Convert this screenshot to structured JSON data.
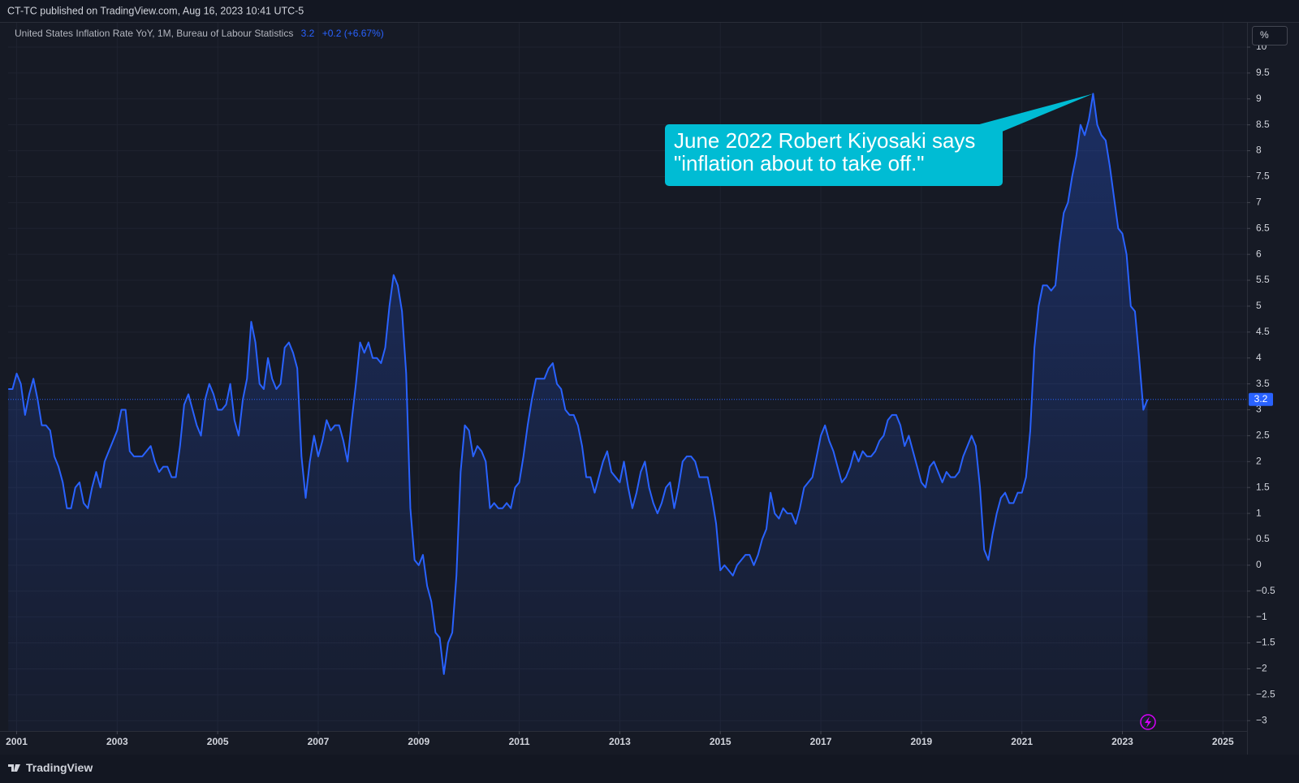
{
  "header": "CT-TC published on TradingView.com, Aug 16, 2023 10:41 UTC-5",
  "footer": "TradingView",
  "unit_button": "%",
  "legend_change": "+0.2 (+6.67%)",
  "chart_data": {
    "type": "area",
    "title": "United States Inflation Rate YoY, 1M, Bureau of Labour Statistics",
    "grid": true,
    "xlim": [
      2000.83,
      2025.48
    ],
    "xticks": [
      2001,
      2003,
      2005,
      2007,
      2009,
      2011,
      2013,
      2015,
      2017,
      2019,
      2021,
      2023,
      2025
    ],
    "ylim": [
      -3.2,
      10
    ],
    "yticks": [
      {
        "value": -3,
        "label": "−3"
      },
      {
        "value": -2.5,
        "label": "−2.5"
      },
      {
        "value": -2,
        "label": "−2"
      },
      {
        "value": -1.5,
        "label": "−1.5"
      },
      {
        "value": -1,
        "label": "−1"
      },
      {
        "value": -0.5,
        "label": "−0.5"
      },
      0,
      0.5,
      1,
      1.5,
      2,
      2.5,
      3,
      3.5,
      4,
      4.5,
      5,
      5.5,
      6,
      6.5,
      7,
      7.5,
      8,
      8.5,
      9,
      9.5,
      10
    ],
    "annotation": {
      "lines": [
        "June 2022 Robert Kiyosaki says",
        "\"inflation about to take off.\""
      ],
      "color": "#00bcd4"
    },
    "series": [
      {
        "name": "United States Inflation Rate YoY",
        "color": "#2962ff",
        "x": [
          2000.833,
          2000.917,
          2001,
          2001.083,
          2001.167,
          2001.25,
          2001.333,
          2001.417,
          2001.5,
          2001.583,
          2001.667,
          2001.75,
          2001.833,
          2001.917,
          2002,
          2002.083,
          2002.167,
          2002.25,
          2002.333,
          2002.417,
          2002.5,
          2002.583,
          2002.667,
          2002.75,
          2002.833,
          2002.917,
          2003,
          2003.083,
          2003.167,
          2003.25,
          2003.333,
          2003.417,
          2003.5,
          2003.583,
          2003.667,
          2003.75,
          2003.833,
          2003.917,
          2004,
          2004.083,
          2004.167,
          2004.25,
          2004.333,
          2004.417,
          2004.5,
          2004.583,
          2004.667,
          2004.75,
          2004.833,
          2004.917,
          2005,
          2005.083,
          2005.167,
          2005.25,
          2005.333,
          2005.417,
          2005.5,
          2005.583,
          2005.667,
          2005.75,
          2005.833,
          2005.917,
          2006,
          2006.083,
          2006.167,
          2006.25,
          2006.333,
          2006.417,
          2006.5,
          2006.583,
          2006.667,
          2006.75,
          2006.833,
          2006.917,
          2007,
          2007.083,
          2007.167,
          2007.25,
          2007.333,
          2007.417,
          2007.5,
          2007.583,
          2007.667,
          2007.75,
          2007.833,
          2007.917,
          2008,
          2008.083,
          2008.167,
          2008.25,
          2008.333,
          2008.417,
          2008.5,
          2008.583,
          2008.667,
          2008.75,
          2008.833,
          2008.917,
          2009,
          2009.083,
          2009.167,
          2009.25,
          2009.333,
          2009.417,
          2009.5,
          2009.583,
          2009.667,
          2009.75,
          2009.833,
          2009.917,
          2010,
          2010.083,
          2010.167,
          2010.25,
          2010.333,
          2010.417,
          2010.5,
          2010.583,
          2010.667,
          2010.75,
          2010.833,
          2010.917,
          2011,
          2011.083,
          2011.167,
          2011.25,
          2011.333,
          2011.417,
          2011.5,
          2011.583,
          2011.667,
          2011.75,
          2011.833,
          2011.917,
          2012,
          2012.083,
          2012.167,
          2012.25,
          2012.333,
          2012.417,
          2012.5,
          2012.583,
          2012.667,
          2012.75,
          2012.833,
          2012.917,
          2013,
          2013.083,
          2013.167,
          2013.25,
          2013.333,
          2013.417,
          2013.5,
          2013.583,
          2013.667,
          2013.75,
          2013.833,
          2013.917,
          2014,
          2014.083,
          2014.167,
          2014.25,
          2014.333,
          2014.417,
          2014.5,
          2014.583,
          2014.667,
          2014.75,
          2014.833,
          2014.917,
          2015,
          2015.083,
          2015.167,
          2015.25,
          2015.333,
          2015.417,
          2015.5,
          2015.583,
          2015.667,
          2015.75,
          2015.833,
          2015.917,
          2016,
          2016.083,
          2016.167,
          2016.25,
          2016.333,
          2016.417,
          2016.5,
          2016.583,
          2016.667,
          2016.75,
          2016.833,
          2016.917,
          2017,
          2017.083,
          2017.167,
          2017.25,
          2017.333,
          2017.417,
          2017.5,
          2017.583,
          2017.667,
          2017.75,
          2017.833,
          2017.917,
          2018,
          2018.083,
          2018.167,
          2018.25,
          2018.333,
          2018.417,
          2018.5,
          2018.583,
          2018.667,
          2018.75,
          2018.833,
          2018.917,
          2019,
          2019.083,
          2019.167,
          2019.25,
          2019.333,
          2019.417,
          2019.5,
          2019.583,
          2019.667,
          2019.75,
          2019.833,
          2019.917,
          2020,
          2020.083,
          2020.167,
          2020.25,
          2020.333,
          2020.417,
          2020.5,
          2020.583,
          2020.667,
          2020.75,
          2020.833,
          2020.917,
          2021,
          2021.083,
          2021.167,
          2021.25,
          2021.333,
          2021.417,
          2021.5,
          2021.583,
          2021.667,
          2021.75,
          2021.833,
          2021.917,
          2022,
          2022.083,
          2022.167,
          2022.25,
          2022.333,
          2022.417,
          2022.5,
          2022.583,
          2022.667,
          2022.75,
          2022.833,
          2022.917,
          2023,
          2023.083,
          2023.167,
          2023.25,
          2023.333,
          2023.417,
          2023.5
        ],
        "values": [
          3.4,
          3.4,
          3.7,
          3.5,
          2.9,
          3.3,
          3.6,
          3.2,
          2.7,
          2.7,
          2.6,
          2.1,
          1.9,
          1.6,
          1.1,
          1.1,
          1.5,
          1.6,
          1.2,
          1.1,
          1.5,
          1.8,
          1.5,
          2.0,
          2.2,
          2.4,
          2.6,
          3.0,
          3.0,
          2.2,
          2.1,
          2.1,
          2.1,
          2.2,
          2.3,
          2.0,
          1.8,
          1.9,
          1.9,
          1.7,
          1.7,
          2.3,
          3.1,
          3.3,
          3.0,
          2.7,
          2.5,
          3.2,
          3.5,
          3.3,
          3.0,
          3.0,
          3.1,
          3.5,
          2.8,
          2.5,
          3.2,
          3.6,
          4.7,
          4.3,
          3.5,
          3.4,
          4.0,
          3.6,
          3.4,
          3.5,
          4.2,
          4.3,
          4.1,
          3.8,
          2.1,
          1.3,
          2.0,
          2.5,
          2.1,
          2.4,
          2.8,
          2.6,
          2.7,
          2.7,
          2.4,
          2.0,
          2.8,
          3.5,
          4.3,
          4.1,
          4.3,
          4.0,
          4.0,
          3.9,
          4.2,
          5.0,
          5.6,
          5.4,
          4.9,
          3.7,
          1.1,
          0.1,
          0.0,
          0.2,
          -0.4,
          -0.7,
          -1.3,
          -1.4,
          -2.1,
          -1.5,
          -1.3,
          -0.2,
          1.8,
          2.7,
          2.6,
          2.1,
          2.3,
          2.2,
          2.0,
          1.1,
          1.2,
          1.1,
          1.1,
          1.2,
          1.1,
          1.5,
          1.6,
          2.1,
          2.7,
          3.2,
          3.6,
          3.6,
          3.6,
          3.8,
          3.9,
          3.5,
          3.4,
          3.0,
          2.9,
          2.9,
          2.7,
          2.3,
          1.7,
          1.7,
          1.4,
          1.7,
          2.0,
          2.2,
          1.8,
          1.7,
          1.6,
          2.0,
          1.5,
          1.1,
          1.4,
          1.8,
          2.0,
          1.5,
          1.2,
          1.0,
          1.2,
          1.5,
          1.6,
          1.1,
          1.5,
          2.0,
          2.1,
          2.1,
          2.0,
          1.7,
          1.7,
          1.7,
          1.3,
          0.8,
          -0.1,
          0.0,
          -0.1,
          -0.2,
          0.0,
          0.1,
          0.2,
          0.2,
          0.0,
          0.2,
          0.5,
          0.7,
          1.4,
          1.0,
          0.9,
          1.1,
          1.0,
          1.0,
          0.8,
          1.1,
          1.5,
          1.6,
          1.7,
          2.1,
          2.5,
          2.7,
          2.4,
          2.2,
          1.9,
          1.6,
          1.7,
          1.9,
          2.2,
          2.0,
          2.2,
          2.1,
          2.1,
          2.2,
          2.4,
          2.5,
          2.8,
          2.9,
          2.9,
          2.7,
          2.3,
          2.5,
          2.2,
          1.9,
          1.6,
          1.5,
          1.9,
          2.0,
          1.8,
          1.6,
          1.8,
          1.7,
          1.7,
          1.8,
          2.1,
          2.3,
          2.5,
          2.3,
          1.5,
          0.3,
          0.1,
          0.6,
          1.0,
          1.3,
          1.4,
          1.2,
          1.2,
          1.4,
          1.4,
          1.7,
          2.6,
          4.2,
          5.0,
          5.4,
          5.4,
          5.3,
          5.4,
          6.2,
          6.8,
          7.0,
          7.5,
          7.9,
          8.5,
          8.3,
          8.6,
          9.1,
          8.5,
          8.3,
          8.2,
          7.7,
          7.1,
          6.5,
          6.4,
          6.0,
          5.0,
          4.9,
          4.0,
          3.0,
          3.2
        ]
      }
    ]
  }
}
